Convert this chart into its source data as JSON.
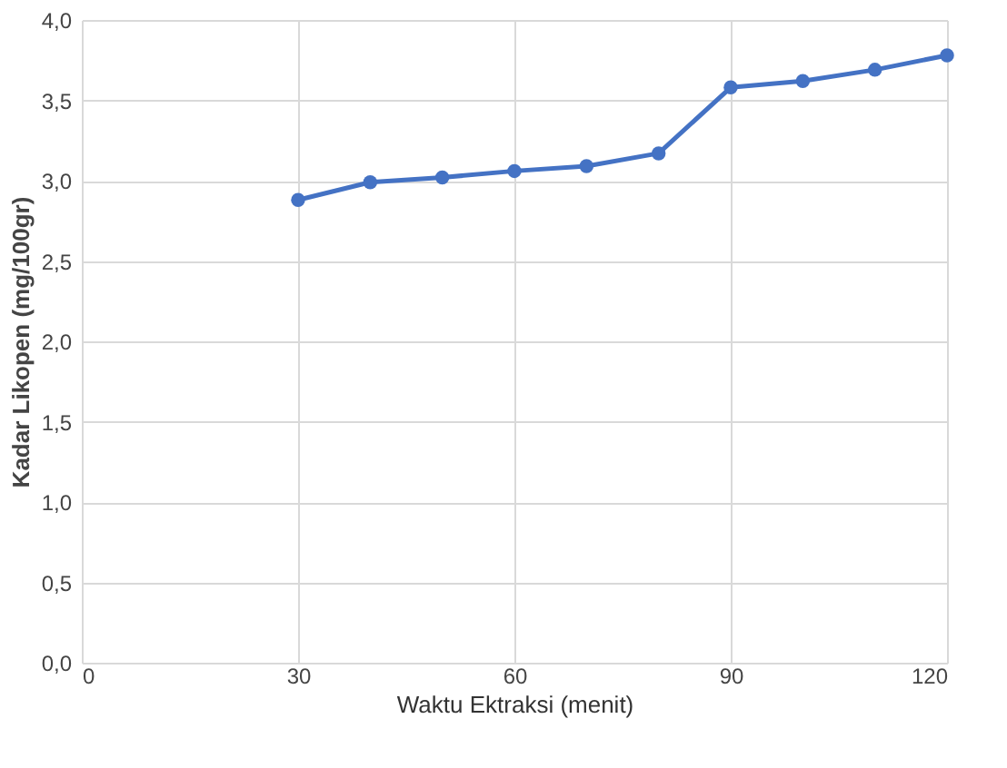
{
  "chart_data": {
    "type": "line",
    "xlabel": "Waktu Ektraksi (menit)",
    "ylabel": "Kadar Likopen (mg/100gr)",
    "x": [
      30,
      40,
      50,
      60,
      70,
      80,
      90,
      100,
      110,
      120
    ],
    "series": [
      {
        "color": "#4472c4",
        "values": [
          2.88,
          2.99,
          3.02,
          3.06,
          3.09,
          3.17,
          3.58,
          3.62,
          3.69,
          3.78
        ]
      }
    ],
    "xlim": [
      0,
      120
    ],
    "xticks": [
      0,
      30,
      60,
      90,
      120
    ],
    "ylim": [
      0,
      4
    ],
    "yticks": [
      {
        "value": 0,
        "label": "0,0"
      },
      {
        "value": 0.5,
        "label": "0,5"
      },
      {
        "value": 1,
        "label": "1,0"
      },
      {
        "value": 1.5,
        "label": "1,5"
      },
      {
        "value": 2,
        "label": "2,0"
      },
      {
        "value": 2.5,
        "label": "2,5"
      },
      {
        "value": 3,
        "label": "3,0"
      },
      {
        "value": 3.5,
        "label": "3,5"
      },
      {
        "value": 4,
        "label": "4,0"
      }
    ],
    "grid": true,
    "marker": "circle",
    "line_style": "solid"
  }
}
